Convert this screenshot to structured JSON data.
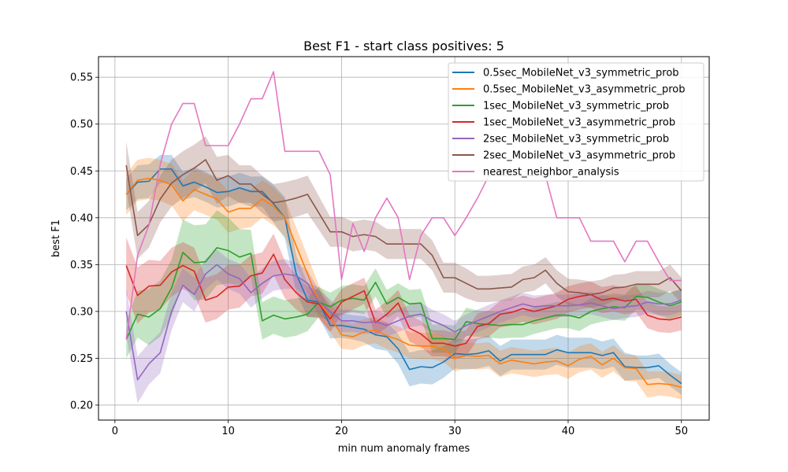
{
  "chart_data": {
    "type": "line",
    "title": "Best F1 - start class positives: 5",
    "xlabel": "min num anomaly frames",
    "ylabel": "best F1",
    "xlim": [
      -1.45,
      52.45
    ],
    "ylim": [
      0.184,
      0.572
    ],
    "x_ticks": [
      0,
      10,
      20,
      30,
      40,
      50
    ],
    "y_ticks": [
      0.2,
      0.25,
      0.3,
      0.35,
      0.4,
      0.45,
      0.5,
      0.55
    ],
    "grid": true,
    "legend_position": "upper right",
    "x": [
      1,
      2,
      3,
      4,
      5,
      6,
      7,
      8,
      9,
      10,
      11,
      12,
      13,
      14,
      15,
      16,
      17,
      18,
      19,
      20,
      21,
      22,
      23,
      24,
      25,
      26,
      27,
      28,
      29,
      30,
      31,
      32,
      33,
      34,
      35,
      36,
      37,
      38,
      39,
      40,
      41,
      42,
      43,
      44,
      45,
      46,
      47,
      48,
      49,
      50
    ],
    "series": [
      {
        "name": "0.5sec_MobileNet_v3_symmetric_prob",
        "color": "#1f77b4",
        "band": true,
        "values": [
          0.425,
          0.438,
          0.439,
          0.452,
          0.452,
          0.434,
          0.438,
          0.433,
          0.427,
          0.428,
          0.432,
          0.428,
          0.428,
          0.415,
          0.4,
          0.34,
          0.312,
          0.31,
          0.285,
          0.285,
          0.283,
          0.281,
          0.275,
          0.273,
          0.26,
          0.238,
          0.241,
          0.24,
          0.246,
          0.255,
          0.254,
          0.255,
          0.258,
          0.247,
          0.254,
          0.254,
          0.254,
          0.254,
          0.259,
          0.256,
          0.256,
          0.256,
          0.253,
          0.256,
          0.241,
          0.24,
          0.24,
          0.242,
          0.232,
          0.223
        ],
        "band_width": [
          0.017,
          0.018,
          0.018,
          0.015,
          0.015,
          0.015,
          0.016,
          0.016,
          0.016,
          0.016,
          0.016,
          0.016,
          0.016,
          0.02,
          0.022,
          0.02,
          0.018,
          0.016,
          0.014,
          0.013,
          0.013,
          0.014,
          0.015,
          0.015,
          0.016,
          0.018,
          0.018,
          0.018,
          0.017,
          0.016,
          0.016,
          0.016,
          0.016,
          0.016,
          0.016,
          0.016,
          0.016,
          0.016,
          0.016,
          0.016,
          0.016,
          0.016,
          0.015,
          0.015,
          0.015,
          0.013,
          0.013,
          0.013,
          0.012,
          0.012
        ]
      },
      {
        "name": "0.5sec_MobileNet_v3_asymmetric_prob",
        "color": "#ff7f0e",
        "band": true,
        "values": [
          0.425,
          0.44,
          0.442,
          0.44,
          0.435,
          0.418,
          0.43,
          0.425,
          0.42,
          0.406,
          0.41,
          0.41,
          0.42,
          0.412,
          0.4,
          0.37,
          0.34,
          0.31,
          0.294,
          0.275,
          0.273,
          0.278,
          0.28,
          0.274,
          0.27,
          0.264,
          0.263,
          0.263,
          0.26,
          0.25,
          0.253,
          0.252,
          0.253,
          0.244,
          0.248,
          0.246,
          0.244,
          0.246,
          0.247,
          0.242,
          0.249,
          0.252,
          0.243,
          0.25,
          0.24,
          0.239,
          0.222,
          0.223,
          0.222,
          0.219
        ],
        "band_width": [
          0.022,
          0.022,
          0.022,
          0.022,
          0.022,
          0.022,
          0.022,
          0.022,
          0.022,
          0.022,
          0.022,
          0.02,
          0.02,
          0.02,
          0.02,
          0.02,
          0.019,
          0.018,
          0.016,
          0.015,
          0.014,
          0.014,
          0.014,
          0.014,
          0.014,
          0.014,
          0.014,
          0.014,
          0.014,
          0.014,
          0.014,
          0.014,
          0.014,
          0.014,
          0.014,
          0.014,
          0.014,
          0.014,
          0.014,
          0.014,
          0.014,
          0.014,
          0.014,
          0.014,
          0.014,
          0.014,
          0.014,
          0.013,
          0.013,
          0.013
        ]
      },
      {
        "name": "1sec_MobileNet_v3_symmetric_prob",
        "color": "#2ca02c",
        "band": true,
        "values": [
          0.27,
          0.297,
          0.294,
          0.303,
          0.325,
          0.363,
          0.352,
          0.353,
          0.368,
          0.365,
          0.358,
          0.362,
          0.29,
          0.296,
          0.292,
          0.294,
          0.297,
          0.31,
          0.305,
          0.312,
          0.314,
          0.312,
          0.331,
          0.308,
          0.315,
          0.308,
          0.309,
          0.271,
          0.271,
          0.27,
          0.289,
          0.287,
          0.286,
          0.285,
          0.286,
          0.286,
          0.29,
          0.293,
          0.296,
          0.296,
          0.293,
          0.3,
          0.303,
          0.305,
          0.304,
          0.316,
          0.315,
          0.31,
          0.306,
          0.31
        ],
        "band_width": [
          0.02,
          0.025,
          0.03,
          0.03,
          0.03,
          0.035,
          0.04,
          0.04,
          0.04,
          0.035,
          0.03,
          0.025,
          0.02,
          0.02,
          0.02,
          0.02,
          0.018,
          0.016,
          0.015,
          0.015,
          0.015,
          0.015,
          0.015,
          0.015,
          0.015,
          0.015,
          0.015,
          0.015,
          0.015,
          0.015,
          0.015,
          0.014,
          0.014,
          0.014,
          0.014,
          0.014,
          0.014,
          0.014,
          0.014,
          0.014,
          0.014,
          0.014,
          0.014,
          0.014,
          0.014,
          0.014,
          0.014,
          0.014,
          0.014,
          0.014
        ]
      },
      {
        "name": "1sec_MobileNet_v3_asymmetric_prob",
        "color": "#d62728",
        "band": true,
        "values": [
          0.349,
          0.317,
          0.327,
          0.328,
          0.342,
          0.349,
          0.343,
          0.312,
          0.316,
          0.326,
          0.327,
          0.338,
          0.341,
          0.361,
          0.334,
          0.32,
          0.31,
          0.308,
          0.292,
          0.31,
          0.316,
          0.322,
          0.288,
          0.297,
          0.309,
          0.282,
          0.276,
          0.266,
          0.266,
          0.263,
          0.266,
          0.284,
          0.287,
          0.297,
          0.299,
          0.303,
          0.3,
          0.303,
          0.306,
          0.313,
          0.316,
          0.318,
          0.312,
          0.314,
          0.311,
          0.313,
          0.296,
          0.292,
          0.291,
          0.294
        ],
        "band_width": [
          0.03,
          0.03,
          0.028,
          0.026,
          0.026,
          0.025,
          0.025,
          0.024,
          0.024,
          0.024,
          0.023,
          0.022,
          0.022,
          0.022,
          0.02,
          0.018,
          0.016,
          0.015,
          0.014,
          0.014,
          0.014,
          0.014,
          0.014,
          0.014,
          0.014,
          0.014,
          0.014,
          0.014,
          0.014,
          0.014,
          0.014,
          0.014,
          0.014,
          0.014,
          0.014,
          0.014,
          0.014,
          0.014,
          0.014,
          0.014,
          0.014,
          0.014,
          0.014,
          0.014,
          0.014,
          0.014,
          0.014,
          0.014,
          0.014,
          0.014
        ]
      },
      {
        "name": "2sec_MobileNet_v3_symmetric_prob",
        "color": "#9467bd",
        "band": true,
        "values": [
          0.3,
          0.227,
          0.244,
          0.256,
          0.3,
          0.328,
          0.318,
          0.34,
          0.35,
          0.34,
          0.335,
          0.32,
          0.33,
          0.338,
          0.34,
          0.338,
          0.33,
          0.31,
          0.3,
          0.29,
          0.29,
          0.288,
          0.289,
          0.285,
          0.29,
          0.295,
          0.297,
          0.29,
          0.285,
          0.278,
          0.285,
          0.29,
          0.295,
          0.3,
          0.304,
          0.308,
          0.305,
          0.306,
          0.306,
          0.306,
          0.307,
          0.309,
          0.306,
          0.303,
          0.305,
          0.306,
          0.31,
          0.308,
          0.308,
          0.312
        ],
        "band_width": [
          0.025,
          0.025,
          0.022,
          0.022,
          0.02,
          0.018,
          0.018,
          0.016,
          0.016,
          0.016,
          0.016,
          0.016,
          0.016,
          0.016,
          0.016,
          0.014,
          0.014,
          0.013,
          0.013,
          0.012,
          0.012,
          0.012,
          0.012,
          0.012,
          0.012,
          0.012,
          0.012,
          0.012,
          0.012,
          0.012,
          0.012,
          0.012,
          0.012,
          0.012,
          0.012,
          0.012,
          0.012,
          0.012,
          0.012,
          0.012,
          0.012,
          0.012,
          0.012,
          0.012,
          0.012,
          0.012,
          0.012,
          0.012,
          0.012,
          0.012
        ]
      },
      {
        "name": "2sec_MobileNet_v3_asymmetric_prob",
        "color": "#8c564b",
        "band": true,
        "values": [
          0.456,
          0.381,
          0.393,
          0.42,
          0.437,
          0.446,
          0.453,
          0.462,
          0.44,
          0.445,
          0.436,
          0.436,
          0.425,
          0.416,
          0.418,
          0.421,
          0.425,
          0.405,
          0.385,
          0.385,
          0.38,
          0.382,
          0.38,
          0.372,
          0.372,
          0.372,
          0.372,
          0.36,
          0.336,
          0.336,
          0.33,
          0.324,
          0.324,
          0.325,
          0.326,
          0.334,
          0.336,
          0.344,
          0.33,
          0.321,
          0.32,
          0.318,
          0.32,
          0.325,
          0.326,
          0.329,
          0.329,
          0.329,
          0.336,
          0.322
        ],
        "band_width": [
          0.025,
          0.025,
          0.025,
          0.025,
          0.025,
          0.025,
          0.025,
          0.025,
          0.025,
          0.022,
          0.02,
          0.02,
          0.02,
          0.02,
          0.02,
          0.02,
          0.02,
          0.018,
          0.016,
          0.016,
          0.016,
          0.016,
          0.016,
          0.016,
          0.016,
          0.016,
          0.016,
          0.016,
          0.016,
          0.016,
          0.016,
          0.014,
          0.014,
          0.014,
          0.014,
          0.014,
          0.014,
          0.014,
          0.014,
          0.014,
          0.014,
          0.014,
          0.014,
          0.014,
          0.014,
          0.014,
          0.014,
          0.014,
          0.014,
          0.014
        ]
      },
      {
        "name": "nearest_neighbor_analysis",
        "color": "#e377c2",
        "band": false,
        "values": [
          0.27,
          0.36,
          0.392,
          0.457,
          0.5,
          0.522,
          0.522,
          0.477,
          0.477,
          0.477,
          0.5,
          0.527,
          0.527,
          0.556,
          0.471,
          0.471,
          0.471,
          0.471,
          0.446,
          0.334,
          0.394,
          0.364,
          0.4,
          0.421,
          0.4,
          0.334,
          0.381,
          0.4,
          0.4,
          0.381,
          0.4,
          0.421,
          0.445,
          0.445,
          0.445,
          0.445,
          0.445,
          0.445,
          0.4,
          0.4,
          0.4,
          0.375,
          0.375,
          0.375,
          0.353,
          0.375,
          0.375,
          0.353,
          0.333,
          0.333
        ]
      }
    ]
  }
}
